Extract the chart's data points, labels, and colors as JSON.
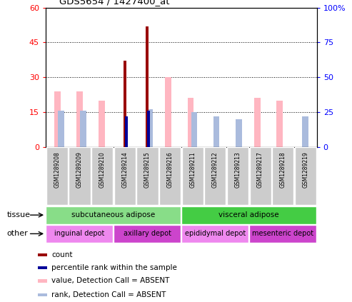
{
  "title": "GDS5654 / 1427400_at",
  "samples": [
    "GSM1289208",
    "GSM1289209",
    "GSM1289210",
    "GSM1289214",
    "GSM1289215",
    "GSM1289216",
    "GSM1289211",
    "GSM1289212",
    "GSM1289213",
    "GSM1289217",
    "GSM1289218",
    "GSM1289219"
  ],
  "value_absent": [
    24,
    24,
    20,
    0,
    0,
    30,
    21,
    0,
    0,
    21,
    20,
    0
  ],
  "rank_absent": [
    26,
    26,
    0,
    0,
    27,
    0,
    25,
    22,
    20,
    0,
    0,
    22
  ],
  "count": [
    0,
    0,
    0,
    37,
    52,
    0,
    0,
    0,
    0,
    0,
    0,
    0
  ],
  "percentile_rank": [
    0,
    0,
    0,
    22,
    26,
    0,
    0,
    0,
    0,
    0,
    0,
    0
  ],
  "ylim_left": [
    0,
    60
  ],
  "ylim_right": [
    0,
    100
  ],
  "yticks_left": [
    0,
    15,
    30,
    45,
    60
  ],
  "yticks_right": [
    0,
    25,
    50,
    75,
    100
  ],
  "ytick_labels_left": [
    "0",
    "15",
    "30",
    "45",
    "60"
  ],
  "ytick_labels_right": [
    "0",
    "25",
    "50",
    "75",
    "100%"
  ],
  "color_count": "#990000",
  "color_percentile": "#000099",
  "color_value_absent": "#FFB6C1",
  "color_rank_absent": "#AABBDD",
  "tissue_row": [
    {
      "label": "subcutaneous adipose",
      "start": 0,
      "end": 6,
      "color": "#88DD88"
    },
    {
      "label": "visceral adipose",
      "start": 6,
      "end": 12,
      "color": "#44CC44"
    }
  ],
  "other_row": [
    {
      "label": "inguinal depot",
      "start": 0,
      "end": 3,
      "color": "#EE88EE"
    },
    {
      "label": "axillary depot",
      "start": 3,
      "end": 6,
      "color": "#CC44CC"
    },
    {
      "label": "epididymal depot",
      "start": 6,
      "end": 9,
      "color": "#EE88EE"
    },
    {
      "label": "mesenteric depot",
      "start": 9,
      "end": 12,
      "color": "#CC44CC"
    }
  ],
  "bg_color": "#CCCCCC",
  "legend_items": [
    {
      "color": "#990000",
      "label": "count"
    },
    {
      "color": "#000099",
      "label": "percentile rank within the sample"
    },
    {
      "color": "#FFB6C1",
      "label": "value, Detection Call = ABSENT"
    },
    {
      "color": "#AABBDD",
      "label": "rank, Detection Call = ABSENT"
    }
  ],
  "fig_width": 4.93,
  "fig_height": 4.23,
  "dpi": 100
}
